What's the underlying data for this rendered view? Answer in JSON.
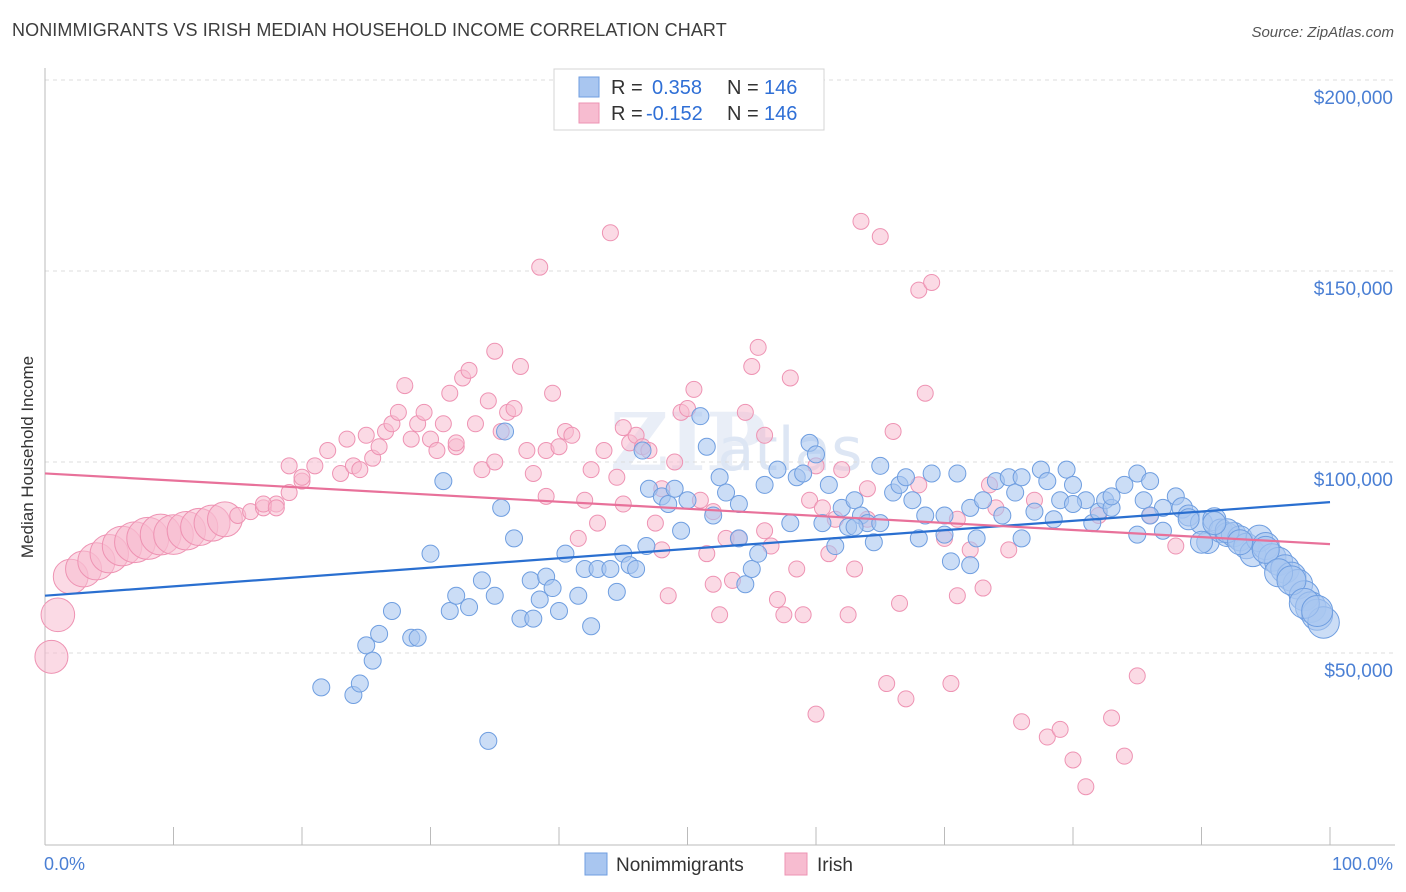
{
  "title": "NONIMMIGRANTS VS IRISH MEDIAN HOUSEHOLD INCOME CORRELATION CHART",
  "source": "Source: ZipAtlas.com",
  "watermark": "ZIPatlas",
  "colors": {
    "blue_fill": "#a9c6f0",
    "blue_stroke": "#6f9ee0",
    "blue_line": "#2a6fd0",
    "pink_fill": "#f7bcd0",
    "pink_stroke": "#ee93b3",
    "pink_line": "#e8719a",
    "axis_label": "#4a7fd4",
    "grid": "#dcdcdc"
  },
  "legend": {
    "rows": [
      {
        "r_label": "R =",
        "r_value": "0.358",
        "n_label": "N =",
        "n_value": "146",
        "series": "blue"
      },
      {
        "r_label": "R =",
        "r_value": "-0.152",
        "n_label": "N =",
        "n_value": "146",
        "series": "pink"
      }
    ]
  },
  "bottom_legend": [
    "Nonimmigrants",
    "Irish"
  ],
  "chart_data": {
    "type": "scatter",
    "title": "NONIMMIGRANTS VS IRISH MEDIAN HOUSEHOLD INCOME CORRELATION CHART",
    "xlabel": "",
    "ylabel": "Median Household Income",
    "xlim": [
      0,
      100
    ],
    "ylim": [
      5000,
      210000
    ],
    "x_tick_labels": [
      "0.0%",
      "100.0%"
    ],
    "y_ticks": [
      50000,
      100000,
      150000,
      200000
    ],
    "y_tick_labels": [
      "$50,000",
      "$100,000",
      "$150,000",
      "$200,000"
    ],
    "grid": true,
    "legend_position": "top-center",
    "series": [
      {
        "name": "Nonimmigrants",
        "color": "#a9c6f0",
        "trend": {
          "x": [
            0,
            100
          ],
          "y": [
            65000,
            89500
          ]
        },
        "points": [
          [
            21.5,
            41
          ],
          [
            24,
            39
          ],
          [
            24.5,
            42
          ],
          [
            25,
            52
          ],
          [
            25.5,
            48
          ],
          [
            26,
            55
          ],
          [
            27,
            61
          ],
          [
            28.5,
            54
          ],
          [
            29,
            54
          ],
          [
            30,
            76
          ],
          [
            31,
            95
          ],
          [
            31.5,
            61
          ],
          [
            32,
            65
          ],
          [
            33,
            62
          ],
          [
            34,
            69
          ],
          [
            35,
            65
          ],
          [
            34.5,
            27
          ],
          [
            35.5,
            88
          ],
          [
            35.8,
            108
          ],
          [
            36.5,
            80
          ],
          [
            37,
            59
          ],
          [
            37.8,
            69
          ],
          [
            38,
            59
          ],
          [
            38.5,
            64
          ],
          [
            39,
            70
          ],
          [
            39.5,
            67
          ],
          [
            40,
            61
          ],
          [
            40.5,
            76
          ],
          [
            41.5,
            65
          ],
          [
            42,
            72
          ],
          [
            42.5,
            57
          ],
          [
            43,
            72
          ],
          [
            44,
            72
          ],
          [
            44.5,
            66
          ],
          [
            45,
            76
          ],
          [
            45.5,
            73
          ],
          [
            46,
            72
          ],
          [
            46.5,
            103
          ],
          [
            46.8,
            78
          ],
          [
            47,
            93
          ],
          [
            48,
            91
          ],
          [
            48.5,
            89
          ],
          [
            49,
            93
          ],
          [
            49.5,
            82
          ],
          [
            50,
            90
          ],
          [
            51,
            112
          ],
          [
            51.5,
            104
          ],
          [
            52,
            86
          ],
          [
            52.5,
            96
          ],
          [
            53,
            92
          ],
          [
            54,
            80
          ],
          [
            54,
            89
          ],
          [
            54.5,
            68
          ],
          [
            55,
            72
          ],
          [
            55.5,
            76
          ],
          [
            56,
            94
          ],
          [
            57,
            98
          ],
          [
            58,
            84
          ],
          [
            58.5,
            96
          ],
          [
            59,
            97
          ],
          [
            59.5,
            105
          ],
          [
            60,
            102
          ],
          [
            60.5,
            84
          ],
          [
            61,
            94
          ],
          [
            61.5,
            78
          ],
          [
            62,
            88
          ],
          [
            62.5,
            83
          ],
          [
            63,
            90
          ],
          [
            63.5,
            86
          ],
          [
            64,
            84
          ],
          [
            64.5,
            79
          ],
          [
            65,
            99
          ],
          [
            66,
            92
          ],
          [
            66.5,
            94
          ],
          [
            67,
            96
          ],
          [
            67.5,
            90
          ],
          [
            68,
            80
          ],
          [
            68.5,
            86
          ],
          [
            69,
            97
          ],
          [
            70,
            81
          ],
          [
            70.5,
            74
          ],
          [
            71,
            97
          ],
          [
            72,
            88
          ],
          [
            72.5,
            80
          ],
          [
            73,
            90
          ],
          [
            74,
            95
          ],
          [
            74.5,
            86
          ],
          [
            75,
            96
          ],
          [
            75.5,
            92
          ],
          [
            76,
            96
          ],
          [
            77,
            87
          ],
          [
            77.5,
            98
          ],
          [
            78,
            95
          ],
          [
            78.5,
            85
          ],
          [
            79,
            90
          ],
          [
            79.5,
            98
          ],
          [
            80,
            94
          ],
          [
            81,
            90
          ],
          [
            81.5,
            84
          ],
          [
            82,
            87
          ],
          [
            82.5,
            90
          ],
          [
            83,
            88
          ],
          [
            84,
            94
          ],
          [
            85,
            97
          ],
          [
            85.5,
            90
          ],
          [
            86,
            95
          ],
          [
            87,
            82
          ],
          [
            88,
            91
          ],
          [
            88.5,
            88
          ],
          [
            89,
            86
          ],
          [
            90,
            84
          ],
          [
            90.5,
            79
          ],
          [
            91,
            85
          ],
          [
            91.5,
            82
          ],
          [
            92,
            81
          ],
          [
            92.5,
            81
          ],
          [
            93,
            80
          ],
          [
            93.5,
            78
          ],
          [
            94,
            76
          ],
          [
            94.5,
            80
          ],
          [
            95,
            78
          ],
          [
            95.5,
            75
          ],
          [
            96,
            74
          ],
          [
            96.5,
            72
          ],
          [
            97,
            70
          ],
          [
            97.5,
            68
          ],
          [
            98,
            65
          ],
          [
            98.5,
            62
          ],
          [
            99,
            60
          ],
          [
            99.5,
            58
          ],
          [
            85,
            81
          ],
          [
            87,
            88
          ],
          [
            90,
            79
          ],
          [
            92,
            82
          ],
          [
            95,
            77
          ],
          [
            96,
            71
          ],
          [
            97,
            69
          ],
          [
            98,
            63
          ],
          [
            99,
            61
          ],
          [
            63,
            83
          ],
          [
            65,
            84
          ],
          [
            70,
            86
          ],
          [
            72,
            73
          ],
          [
            76,
            80
          ],
          [
            80,
            89
          ],
          [
            83,
            91
          ],
          [
            86,
            86
          ],
          [
            89,
            85
          ],
          [
            91,
            84
          ],
          [
            93,
            79
          ]
        ]
      },
      {
        "name": "Irish",
        "color": "#f7bcd0",
        "trend": {
          "x": [
            0,
            100
          ],
          "y": [
            97000,
            78500
          ]
        },
        "points": [
          [
            0.5,
            49
          ],
          [
            1,
            60
          ],
          [
            2,
            70
          ],
          [
            3,
            72
          ],
          [
            4,
            74
          ],
          [
            5,
            76
          ],
          [
            6,
            78
          ],
          [
            7,
            79
          ],
          [
            8,
            80
          ],
          [
            9,
            81
          ],
          [
            10,
            81
          ],
          [
            11,
            82
          ],
          [
            12,
            83
          ],
          [
            13,
            84
          ],
          [
            14,
            85
          ],
          [
            15,
            86
          ],
          [
            16,
            87
          ],
          [
            17,
            88
          ],
          [
            18,
            89
          ],
          [
            19,
            92
          ],
          [
            20,
            95
          ],
          [
            17,
            89
          ],
          [
            18,
            88
          ],
          [
            19,
            99
          ],
          [
            20,
            96
          ],
          [
            21,
            99
          ],
          [
            22,
            103
          ],
          [
            23,
            97
          ],
          [
            23.5,
            106
          ],
          [
            24,
            99
          ],
          [
            24.5,
            98
          ],
          [
            25,
            107
          ],
          [
            25.5,
            101
          ],
          [
            26,
            104
          ],
          [
            26.5,
            108
          ],
          [
            27,
            110
          ],
          [
            27.5,
            113
          ],
          [
            28,
            120
          ],
          [
            28.5,
            106
          ],
          [
            29,
            110
          ],
          [
            29.5,
            113
          ],
          [
            30,
            106
          ],
          [
            30.5,
            103
          ],
          [
            31,
            110
          ],
          [
            31.5,
            118
          ],
          [
            32,
            104
          ],
          [
            32.5,
            122
          ],
          [
            33,
            124
          ],
          [
            33.5,
            110
          ],
          [
            34,
            98
          ],
          [
            34.5,
            116
          ],
          [
            35,
            129
          ],
          [
            35.5,
            108
          ],
          [
            36,
            113
          ],
          [
            36.5,
            114
          ],
          [
            37,
            125
          ],
          [
            37.5,
            103
          ],
          [
            38,
            97
          ],
          [
            38.5,
            151
          ],
          [
            39,
            103
          ],
          [
            39.5,
            118
          ],
          [
            40,
            104
          ],
          [
            40.5,
            108
          ],
          [
            41,
            107
          ],
          [
            41.5,
            80
          ],
          [
            42,
            90
          ],
          [
            42.5,
            98
          ],
          [
            43,
            84
          ],
          [
            43.5,
            103
          ],
          [
            44,
            160
          ],
          [
            44.5,
            96
          ],
          [
            45,
            89
          ],
          [
            45.5,
            105
          ],
          [
            46,
            107
          ],
          [
            46.5,
            104
          ],
          [
            47,
            103
          ],
          [
            47.5,
            84
          ],
          [
            48,
            77
          ],
          [
            48.5,
            65
          ],
          [
            49,
            100
          ],
          [
            49.5,
            113
          ],
          [
            50,
            114
          ],
          [
            50.5,
            119
          ],
          [
            51,
            90
          ],
          [
            51.5,
            76
          ],
          [
            52,
            68
          ],
          [
            52.5,
            60
          ],
          [
            53,
            80
          ],
          [
            53.5,
            69
          ],
          [
            54,
            80
          ],
          [
            54.5,
            113
          ],
          [
            55,
            125
          ],
          [
            55.5,
            130
          ],
          [
            56,
            107
          ],
          [
            56.5,
            78
          ],
          [
            57,
            64
          ],
          [
            57.5,
            60
          ],
          [
            58,
            122
          ],
          [
            58.5,
            72
          ],
          [
            59,
            60
          ],
          [
            59.5,
            90
          ],
          [
            60,
            34
          ],
          [
            60.5,
            88
          ],
          [
            61,
            76
          ],
          [
            61.5,
            85
          ],
          [
            62,
            98
          ],
          [
            62.5,
            60
          ],
          [
            63,
            72
          ],
          [
            63.5,
            163
          ],
          [
            64,
            85
          ],
          [
            65,
            159
          ],
          [
            65.5,
            42
          ],
          [
            66,
            108
          ],
          [
            66.5,
            63
          ],
          [
            67,
            38
          ],
          [
            68,
            145
          ],
          [
            68.5,
            118
          ],
          [
            69,
            147
          ],
          [
            70,
            80
          ],
          [
            70.5,
            42
          ],
          [
            71,
            65
          ],
          [
            72,
            77
          ],
          [
            73,
            67
          ],
          [
            73.5,
            94
          ],
          [
            75,
            77
          ],
          [
            76,
            32
          ],
          [
            77,
            90
          ],
          [
            78,
            28
          ],
          [
            79,
            30
          ],
          [
            80,
            22
          ],
          [
            81,
            15
          ],
          [
            82,
            86
          ],
          [
            83,
            33
          ],
          [
            84,
            23
          ],
          [
            85,
            44
          ],
          [
            86,
            86
          ],
          [
            88,
            78
          ],
          [
            32,
            105
          ],
          [
            35,
            100
          ],
          [
            39,
            91
          ],
          [
            45,
            109
          ],
          [
            48,
            93
          ],
          [
            52,
            87
          ],
          [
            56,
            82
          ],
          [
            60,
            99
          ],
          [
            64,
            93
          ],
          [
            68,
            94
          ],
          [
            71,
            85
          ],
          [
            74,
            88
          ]
        ]
      }
    ]
  }
}
